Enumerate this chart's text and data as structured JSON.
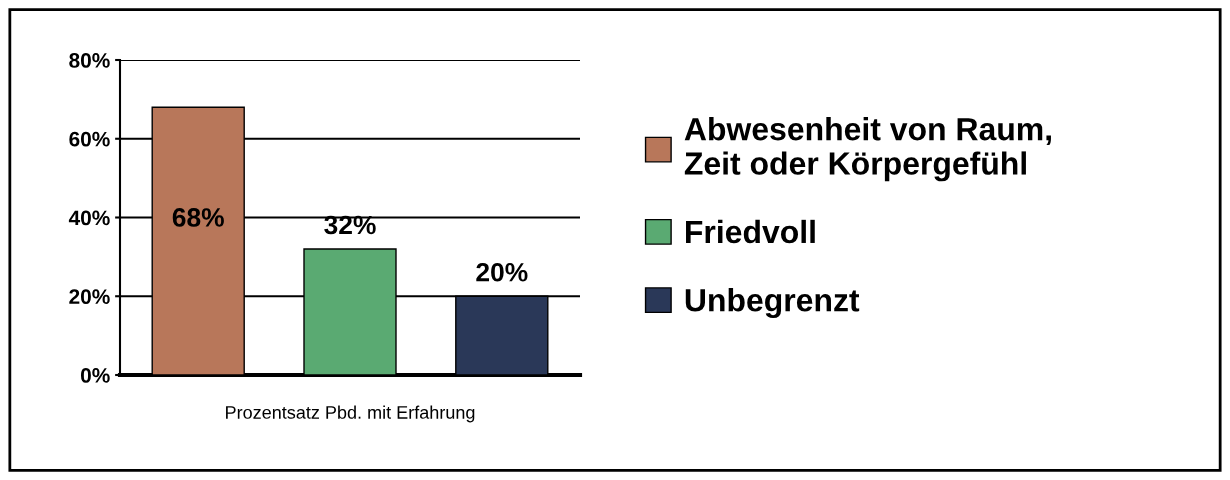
{
  "chart_data": {
    "type": "bar",
    "categories": [
      "Prozentsatz Pbd. mit Erfahrung"
    ],
    "series": [
      {
        "name": "Abwesenheit von Raum,\nZeit oder Körpergefühl",
        "color": "#b8775a",
        "values": [
          68
        ],
        "value_labels": [
          "68%"
        ]
      },
      {
        "name": "Friedvoll",
        "color": "#5aaa72",
        "values": [
          32
        ],
        "value_labels": [
          "32%"
        ]
      },
      {
        "name": "Unbegrenzt",
        "color": "#2a3858",
        "values": [
          20
        ],
        "value_labels": [
          "20%"
        ]
      }
    ],
    "ylim": [
      0,
      80
    ],
    "yticks": [
      {
        "value": 0,
        "label": "0%"
      },
      {
        "value": 20,
        "label": "20%"
      },
      {
        "value": 40,
        "label": "40%"
      },
      {
        "value": 60,
        "label": "60%"
      },
      {
        "value": 80,
        "label": "80%"
      }
    ],
    "grid": "y",
    "legend": "right"
  }
}
